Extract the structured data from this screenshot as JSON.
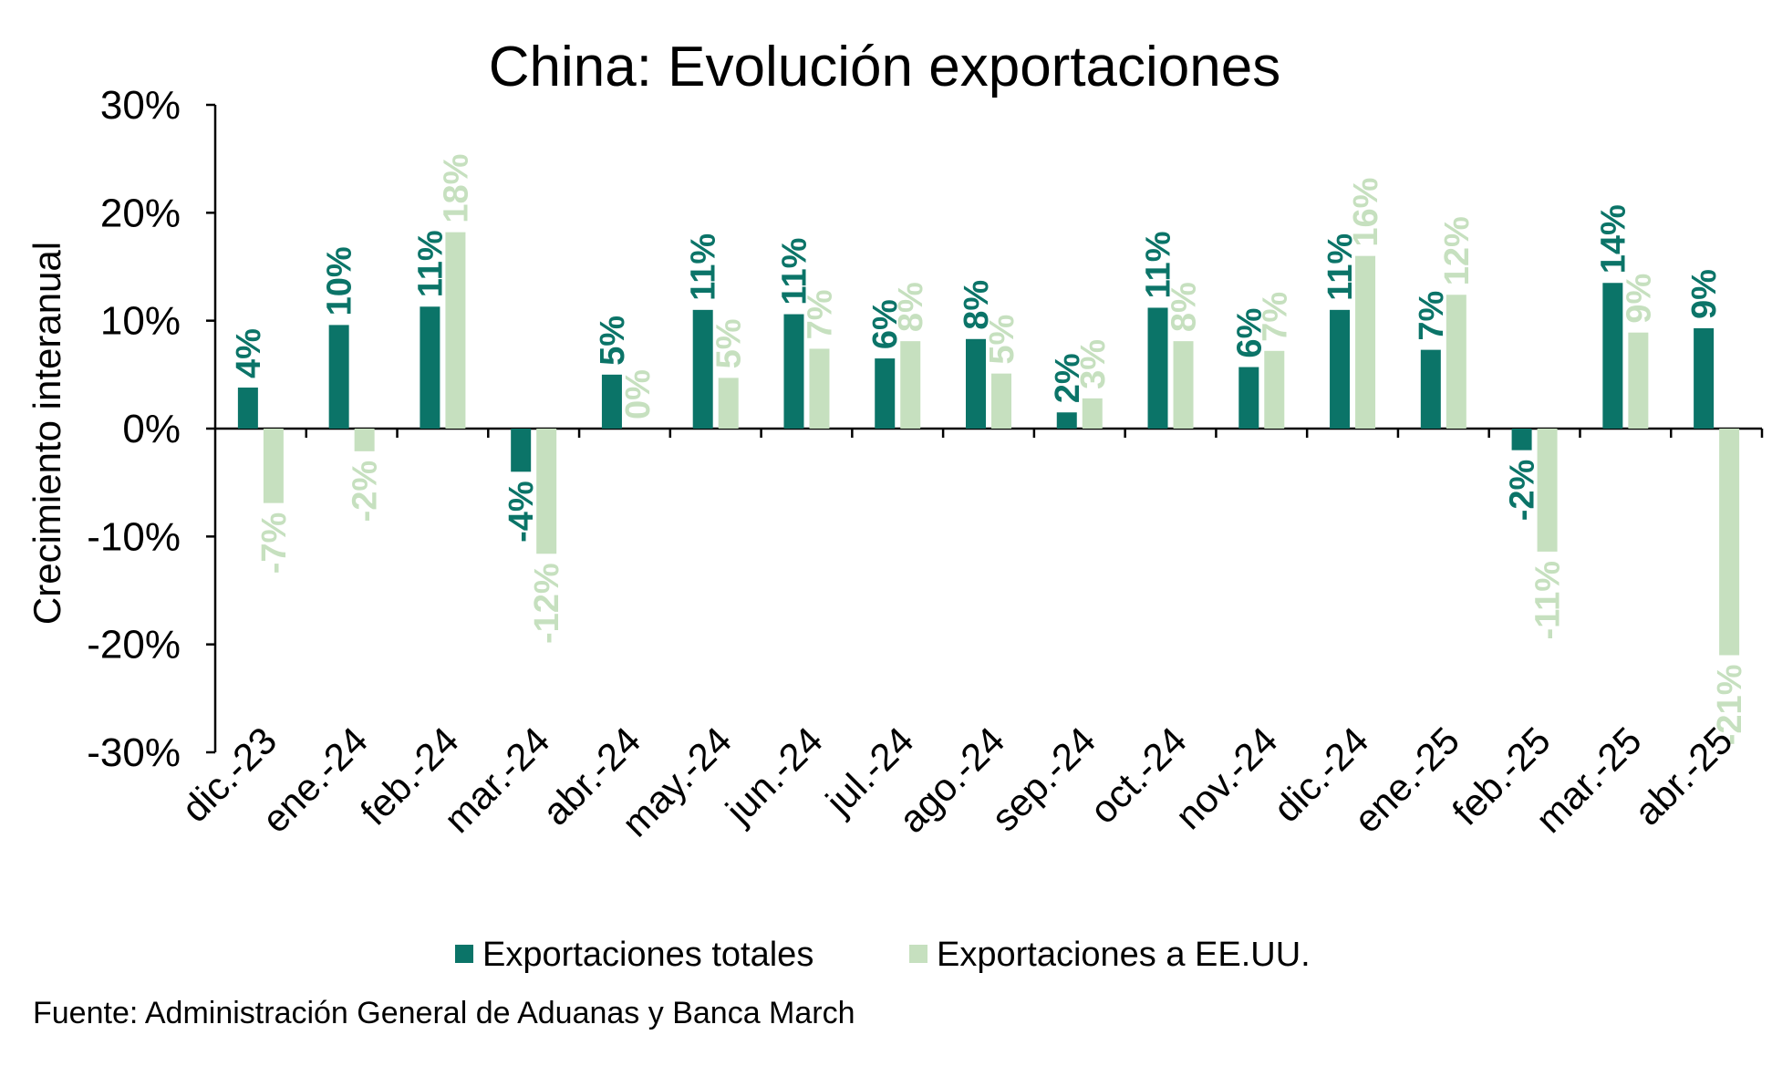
{
  "colors": {
    "series_total": "#0b7468",
    "series_us": "#c6e0bf"
  },
  "source_text": "Fuente: Administración General de Aduanas y Banca March",
  "chart_data": {
    "type": "bar",
    "title": "China: Evolución exportaciones",
    "ylabel": "Crecimiento interanual",
    "xlabel": "",
    "ylim": [
      -30,
      30
    ],
    "yticks": [
      30,
      20,
      10,
      0,
      -10,
      -20,
      -30
    ],
    "ytick_labels": [
      "30%",
      "20%",
      "10%",
      "0%",
      "-10%",
      "-20%",
      "-30%"
    ],
    "legend_position": "bottom",
    "categories": [
      "dic.-23",
      "ene.-24",
      "feb.-24",
      "mar.-24",
      "abr.-24",
      "may.-24",
      "jun.-24",
      "jul.-24",
      "ago.-24",
      "sep.-24",
      "oct.-24",
      "nov.-24",
      "dic.-24",
      "ene.-25",
      "feb.-25",
      "mar.-25",
      "abr.-25"
    ],
    "series": [
      {
        "name": "Exportaciones totales",
        "values": [
          3.8,
          9.6,
          11.3,
          -4.0,
          5.0,
          11.0,
          10.6,
          6.5,
          8.3,
          1.5,
          11.2,
          5.7,
          11.0,
          7.3,
          -2.0,
          13.5,
          9.3
        ],
        "labels": [
          "4%",
          "10%",
          "11%",
          "-4%",
          "5%",
          "11%",
          "11%",
          "6%",
          "8%",
          "2%",
          "11%",
          "6%",
          "11%",
          "7%",
          "-2%",
          "14%",
          "9%"
        ]
      },
      {
        "name": "Exportaciones a EE.UU.",
        "values": [
          -6.9,
          -2.1,
          18.2,
          -11.6,
          0.0,
          4.7,
          7.4,
          8.1,
          5.1,
          2.8,
          8.1,
          7.2,
          16.0,
          12.4,
          -11.4,
          8.9,
          -21.0
        ],
        "labels": [
          "-7%",
          "-2%",
          "18%",
          "-12%",
          "0%",
          "5%",
          "7%",
          "8%",
          "5%",
          "3%",
          "8%",
          "7%",
          "16%",
          "12%",
          "-11%",
          "9%",
          "-21%"
        ]
      }
    ]
  }
}
